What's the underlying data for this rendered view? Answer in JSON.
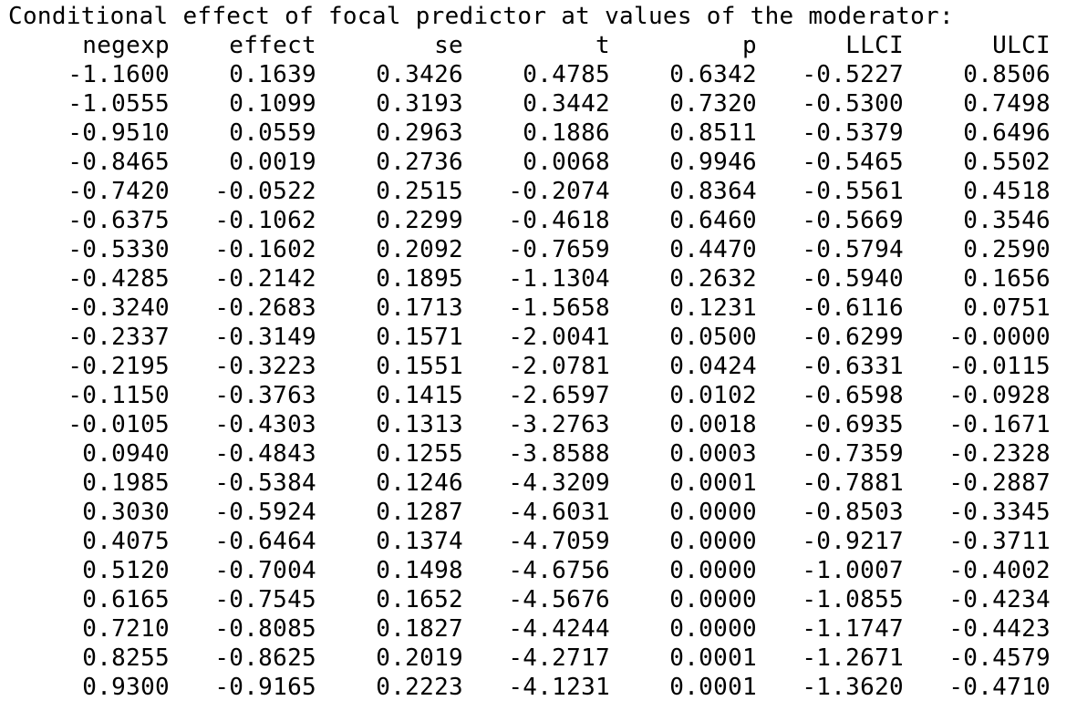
{
  "title": "Conditional effect of focal predictor at values of the moderator:",
  "table": {
    "headers": [
      "negexp",
      "effect",
      "se",
      "t",
      "p",
      "LLCI",
      "ULCI"
    ],
    "rows": [
      [
        "-1.1600",
        "0.1639",
        "0.3426",
        "0.4785",
        "0.6342",
        "-0.5227",
        "0.8506"
      ],
      [
        "-1.0555",
        "0.1099",
        "0.3193",
        "0.3442",
        "0.7320",
        "-0.5300",
        "0.7498"
      ],
      [
        "-0.9510",
        "0.0559",
        "0.2963",
        "0.1886",
        "0.8511",
        "-0.5379",
        "0.6496"
      ],
      [
        "-0.8465",
        "0.0019",
        "0.2736",
        "0.0068",
        "0.9946",
        "-0.5465",
        "0.5502"
      ],
      [
        "-0.7420",
        "-0.0522",
        "0.2515",
        "-0.2074",
        "0.8364",
        "-0.5561",
        "0.4518"
      ],
      [
        "-0.6375",
        "-0.1062",
        "0.2299",
        "-0.4618",
        "0.6460",
        "-0.5669",
        "0.3546"
      ],
      [
        "-0.5330",
        "-0.1602",
        "0.2092",
        "-0.7659",
        "0.4470",
        "-0.5794",
        "0.2590"
      ],
      [
        "-0.4285",
        "-0.2142",
        "0.1895",
        "-1.1304",
        "0.2632",
        "-0.5940",
        "0.1656"
      ],
      [
        "-0.3240",
        "-0.2683",
        "0.1713",
        "-1.5658",
        "0.1231",
        "-0.6116",
        "0.0751"
      ],
      [
        "-0.2337",
        "-0.3149",
        "0.1571",
        "-2.0041",
        "0.0500",
        "-0.6299",
        "-0.0000"
      ],
      [
        "-0.2195",
        "-0.3223",
        "0.1551",
        "-2.0781",
        "0.0424",
        "-0.6331",
        "-0.0115"
      ],
      [
        "-0.1150",
        "-0.3763",
        "0.1415",
        "-2.6597",
        "0.0102",
        "-0.6598",
        "-0.0928"
      ],
      [
        "-0.0105",
        "-0.4303",
        "0.1313",
        "-3.2763",
        "0.0018",
        "-0.6935",
        "-0.1671"
      ],
      [
        "0.0940",
        "-0.4843",
        "0.1255",
        "-3.8588",
        "0.0003",
        "-0.7359",
        "-0.2328"
      ],
      [
        "0.1985",
        "-0.5384",
        "0.1246",
        "-4.3209",
        "0.0001",
        "-0.7881",
        "-0.2887"
      ],
      [
        "0.3030",
        "-0.5924",
        "0.1287",
        "-4.6031",
        "0.0000",
        "-0.8503",
        "-0.3345"
      ],
      [
        "0.4075",
        "-0.6464",
        "0.1374",
        "-4.7059",
        "0.0000",
        "-0.9217",
        "-0.3711"
      ],
      [
        "0.5120",
        "-0.7004",
        "0.1498",
        "-4.6756",
        "0.0000",
        "-1.0007",
        "-0.4002"
      ],
      [
        "0.6165",
        "-0.7545",
        "0.1652",
        "-4.5676",
        "0.0000",
        "-1.0855",
        "-0.4234"
      ],
      [
        "0.7210",
        "-0.8085",
        "0.1827",
        "-4.4244",
        "0.0000",
        "-1.1747",
        "-0.4423"
      ],
      [
        "0.8255",
        "-0.8625",
        "0.2019",
        "-4.2717",
        "0.0001",
        "-1.2671",
        "-0.4579"
      ],
      [
        "0.9300",
        "-0.9165",
        "0.2223",
        "-4.1231",
        "0.0001",
        "-1.3620",
        "-0.4710"
      ]
    ]
  }
}
